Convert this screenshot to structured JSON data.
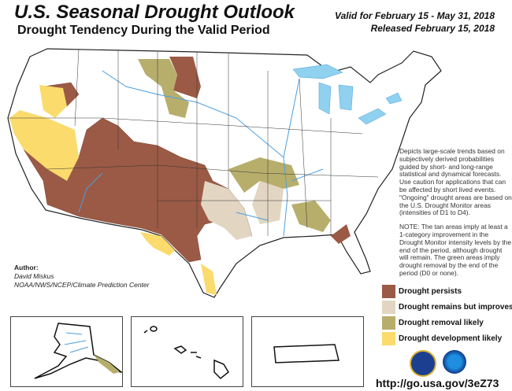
{
  "header": {
    "title": "U.S. Seasonal Drought Outlook",
    "subtitle": "Drought Tendency During the Valid Period",
    "valid": "Valid for February 15 - May 31, 2018",
    "released": "Released February 15, 2018"
  },
  "description": "Depicts large-scale trends based on subjectively derived probabilities guided by short- and long-range statistical and dynamical forecasts. Use caution for applications that can be affected by short lived events. \"Ongoing\" drought areas are based on the U.S. Drought Monitor areas (intensities of D1 to D4).",
  "note": "NOTE: The tan areas imply at least a 1-category improvement in the Drought Monitor intensity levels by the end of the period, although drought will remain. The green areas imply drought removal by the end of the period (D0 or none).",
  "author": {
    "label": "Author:",
    "name": "David Miskus",
    "org": "NOAA/NWS/NCEP/Climate Prediction Center"
  },
  "legend": [
    {
      "label": "Drought persists",
      "color": "#9b5a45"
    },
    {
      "label": "Drought remains but improves",
      "color": "#e2d6c2"
    },
    {
      "label": "Drought removal likely",
      "color": "#b7ae6c"
    },
    {
      "label": "Drought development likely",
      "color": "#fadb6c"
    }
  ],
  "colors": {
    "water": "#8fd1ef",
    "rivers": "#4a9fe0"
  },
  "logos": [
    "doc-seal",
    "noaa-logo"
  ],
  "url": "http://go.usa.gov/3eZ73"
}
